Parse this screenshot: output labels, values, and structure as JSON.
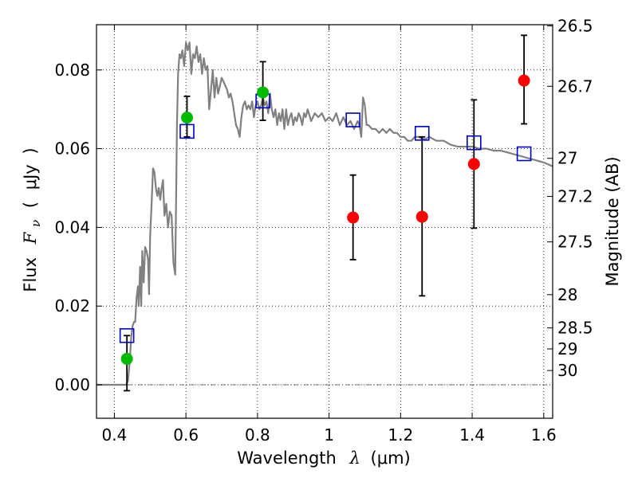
{
  "chart_data": {
    "type": "scatter",
    "xlabel_text": "Wavelength",
    "xlabel_symbol": "λ",
    "xlabel_unit": "(μm)",
    "ylabel_text": "Flux",
    "ylabel_symbol": "F",
    "ylabel_subscript": "ν",
    "ylabel_unit_open": "(",
    "ylabel_unit": "μJy",
    "ylabel_unit_close": ")",
    "y2label": "Magnitude (AB)",
    "xlim": [
      0.35,
      1.625
    ],
    "ylim": [
      -0.0085,
      0.0915
    ],
    "grid": true,
    "xticks": [
      {
        "value": 0.4,
        "label": "0.4"
      },
      {
        "value": 0.6,
        "label": "0.6"
      },
      {
        "value": 0.8,
        "label": "0.8"
      },
      {
        "value": 1.0,
        "label": "1"
      },
      {
        "value": 1.2,
        "label": "1.2"
      },
      {
        "value": 1.4,
        "label": "1.4"
      },
      {
        "value": 1.6,
        "label": "1.6"
      }
    ],
    "yticks": [
      {
        "value": 0.0,
        "label": "0.00"
      },
      {
        "value": 0.02,
        "label": "0.02"
      },
      {
        "value": 0.04,
        "label": "0.04"
      },
      {
        "value": 0.06,
        "label": "0.06"
      },
      {
        "value": 0.08,
        "label": "0.08"
      }
    ],
    "y2ticks": [
      {
        "value": 26.5,
        "label": "26.5"
      },
      {
        "value": 26.7,
        "label": "26.7"
      },
      {
        "value": 27.0,
        "label": "27"
      },
      {
        "value": 27.2,
        "label": "27.2"
      },
      {
        "value": 27.5,
        "label": "27.5"
      },
      {
        "value": 28.0,
        "label": "28"
      },
      {
        "value": 28.5,
        "label": "28.5"
      },
      {
        "value": 29.0,
        "label": "29"
      },
      {
        "value": 30.0,
        "label": "30"
      }
    ],
    "zero_line": 0.0,
    "colors": {
      "model": "#808080",
      "model_photometry": "#0000cc",
      "detections": "#00bb00",
      "upper_points": "#ff0000",
      "errorbar": "#000000"
    },
    "series": [
      {
        "kind": "line",
        "color_key": "model",
        "x": [
          0.35,
          0.42,
          0.433,
          0.438,
          0.443,
          0.447,
          0.451,
          0.455,
          0.458,
          0.462,
          0.466,
          0.468,
          0.472,
          0.475,
          0.478,
          0.482,
          0.486,
          0.49,
          0.494,
          0.497,
          0.5,
          0.504,
          0.508,
          0.512,
          0.516,
          0.52,
          0.524,
          0.528,
          0.532,
          0.536,
          0.54,
          0.545,
          0.55,
          0.555,
          0.56,
          0.565,
          0.57,
          0.575,
          0.578,
          0.582,
          0.586,
          0.59,
          0.595,
          0.6,
          0.605,
          0.61,
          0.615,
          0.62,
          0.625,
          0.63,
          0.635,
          0.64,
          0.645,
          0.65,
          0.655,
          0.66,
          0.665,
          0.67,
          0.675,
          0.68,
          0.685,
          0.69,
          0.695,
          0.7,
          0.705,
          0.71,
          0.715,
          0.72,
          0.725,
          0.73,
          0.735,
          0.74,
          0.745,
          0.75,
          0.755,
          0.76,
          0.765,
          0.77,
          0.775,
          0.78,
          0.785,
          0.79,
          0.795,
          0.8,
          0.805,
          0.81,
          0.815,
          0.82,
          0.825,
          0.83,
          0.835,
          0.84,
          0.845,
          0.85,
          0.855,
          0.86,
          0.865,
          0.87,
          0.875,
          0.88,
          0.885,
          0.89,
          0.895,
          0.9,
          0.905,
          0.91,
          0.915,
          0.92,
          0.925,
          0.93,
          0.935,
          0.94,
          0.95,
          0.96,
          0.97,
          0.98,
          0.99,
          1.0,
          1.01,
          1.02,
          1.03,
          1.04,
          1.05,
          1.06,
          1.07,
          1.08,
          1.085,
          1.09,
          1.095,
          1.1,
          1.105,
          1.11,
          1.12,
          1.13,
          1.14,
          1.15,
          1.16,
          1.17,
          1.18,
          1.19,
          1.2,
          1.21,
          1.22,
          1.23,
          1.24,
          1.25,
          1.26,
          1.27,
          1.28,
          1.3,
          1.32,
          1.34,
          1.36,
          1.38,
          1.4,
          1.42,
          1.44,
          1.46,
          1.48,
          1.5,
          1.52,
          1.54,
          1.56,
          1.58,
          1.6,
          1.625
        ],
        "y": [
          0.0,
          0.0,
          0.0,
          0.001,
          0.006,
          0.012,
          0.015,
          0.016,
          0.016,
          0.022,
          0.025,
          0.02,
          0.03,
          0.02,
          0.034,
          0.026,
          0.035,
          0.034,
          0.032,
          0.023,
          0.038,
          0.046,
          0.055,
          0.054,
          0.05,
          0.048,
          0.05,
          0.047,
          0.05,
          0.052,
          0.043,
          0.046,
          0.04,
          0.044,
          0.043,
          0.031,
          0.028,
          0.066,
          0.079,
          0.084,
          0.083,
          0.085,
          0.081,
          0.087,
          0.085,
          0.087,
          0.079,
          0.084,
          0.083,
          0.086,
          0.082,
          0.084,
          0.079,
          0.083,
          0.08,
          0.081,
          0.07,
          0.075,
          0.08,
          0.073,
          0.078,
          0.074,
          0.076,
          0.078,
          0.077,
          0.076,
          0.075,
          0.073,
          0.074,
          0.072,
          0.069,
          0.066,
          0.065,
          0.063,
          0.068,
          0.071,
          0.072,
          0.07,
          0.071,
          0.07,
          0.072,
          0.068,
          0.071,
          0.072,
          0.07,
          0.071,
          0.073,
          0.071,
          0.072,
          0.069,
          0.074,
          0.07,
          0.068,
          0.07,
          0.066,
          0.069,
          0.067,
          0.07,
          0.065,
          0.07,
          0.066,
          0.068,
          0.069,
          0.066,
          0.068,
          0.067,
          0.069,
          0.068,
          0.066,
          0.069,
          0.068,
          0.07,
          0.067,
          0.069,
          0.068,
          0.069,
          0.067,
          0.068,
          0.067,
          0.069,
          0.066,
          0.068,
          0.066,
          0.067,
          0.065,
          0.067,
          0.066,
          0.063,
          0.073,
          0.071,
          0.066,
          0.066,
          0.065,
          0.065,
          0.064,
          0.065,
          0.064,
          0.065,
          0.064,
          0.064,
          0.063,
          0.063,
          0.062,
          0.062,
          0.063,
          0.063,
          0.0625,
          0.0625,
          0.063,
          0.062,
          0.062,
          0.061,
          0.0605,
          0.0605,
          0.0605,
          0.06,
          0.06,
          0.0595,
          0.0595,
          0.059,
          0.0585,
          0.058,
          0.0575,
          0.057,
          0.0565,
          0.0555
        ]
      },
      {
        "kind": "errorbars",
        "color_key": "errorbar",
        "points": [
          {
            "x": 0.435,
            "low": -0.0015,
            "high": 0.0125
          },
          {
            "x": 0.603,
            "low": 0.063,
            "high": 0.0733
          },
          {
            "x": 0.815,
            "low": 0.0672,
            "high": 0.0821
          },
          {
            "x": 1.067,
            "low": 0.0318,
            "high": 0.0533
          },
          {
            "x": 1.26,
            "low": 0.0226,
            "high": 0.063
          },
          {
            "x": 1.405,
            "low": 0.0398,
            "high": 0.0724
          },
          {
            "x": 1.545,
            "low": 0.0663,
            "high": 0.0888
          }
        ]
      },
      {
        "kind": "squares",
        "color_key": "model_photometry",
        "points": [
          {
            "x": 0.435,
            "y": 0.0125
          },
          {
            "x": 0.603,
            "y": 0.0644
          },
          {
            "x": 0.815,
            "y": 0.0721
          },
          {
            "x": 1.067,
            "y": 0.0673
          },
          {
            "x": 1.26,
            "y": 0.0639
          },
          {
            "x": 1.405,
            "y": 0.0615
          },
          {
            "x": 1.545,
            "y": 0.0587
          }
        ]
      },
      {
        "kind": "circles",
        "color_key": "detections",
        "points": [
          {
            "x": 0.435,
            "y": 0.0066
          },
          {
            "x": 0.603,
            "y": 0.0679
          },
          {
            "x": 0.815,
            "y": 0.0743
          }
        ]
      },
      {
        "kind": "circles",
        "color_key": "upper_points",
        "points": [
          {
            "x": 1.067,
            "y": 0.0425
          },
          {
            "x": 1.26,
            "y": 0.0427
          },
          {
            "x": 1.405,
            "y": 0.0561
          },
          {
            "x": 1.545,
            "y": 0.0773
          }
        ]
      }
    ]
  }
}
